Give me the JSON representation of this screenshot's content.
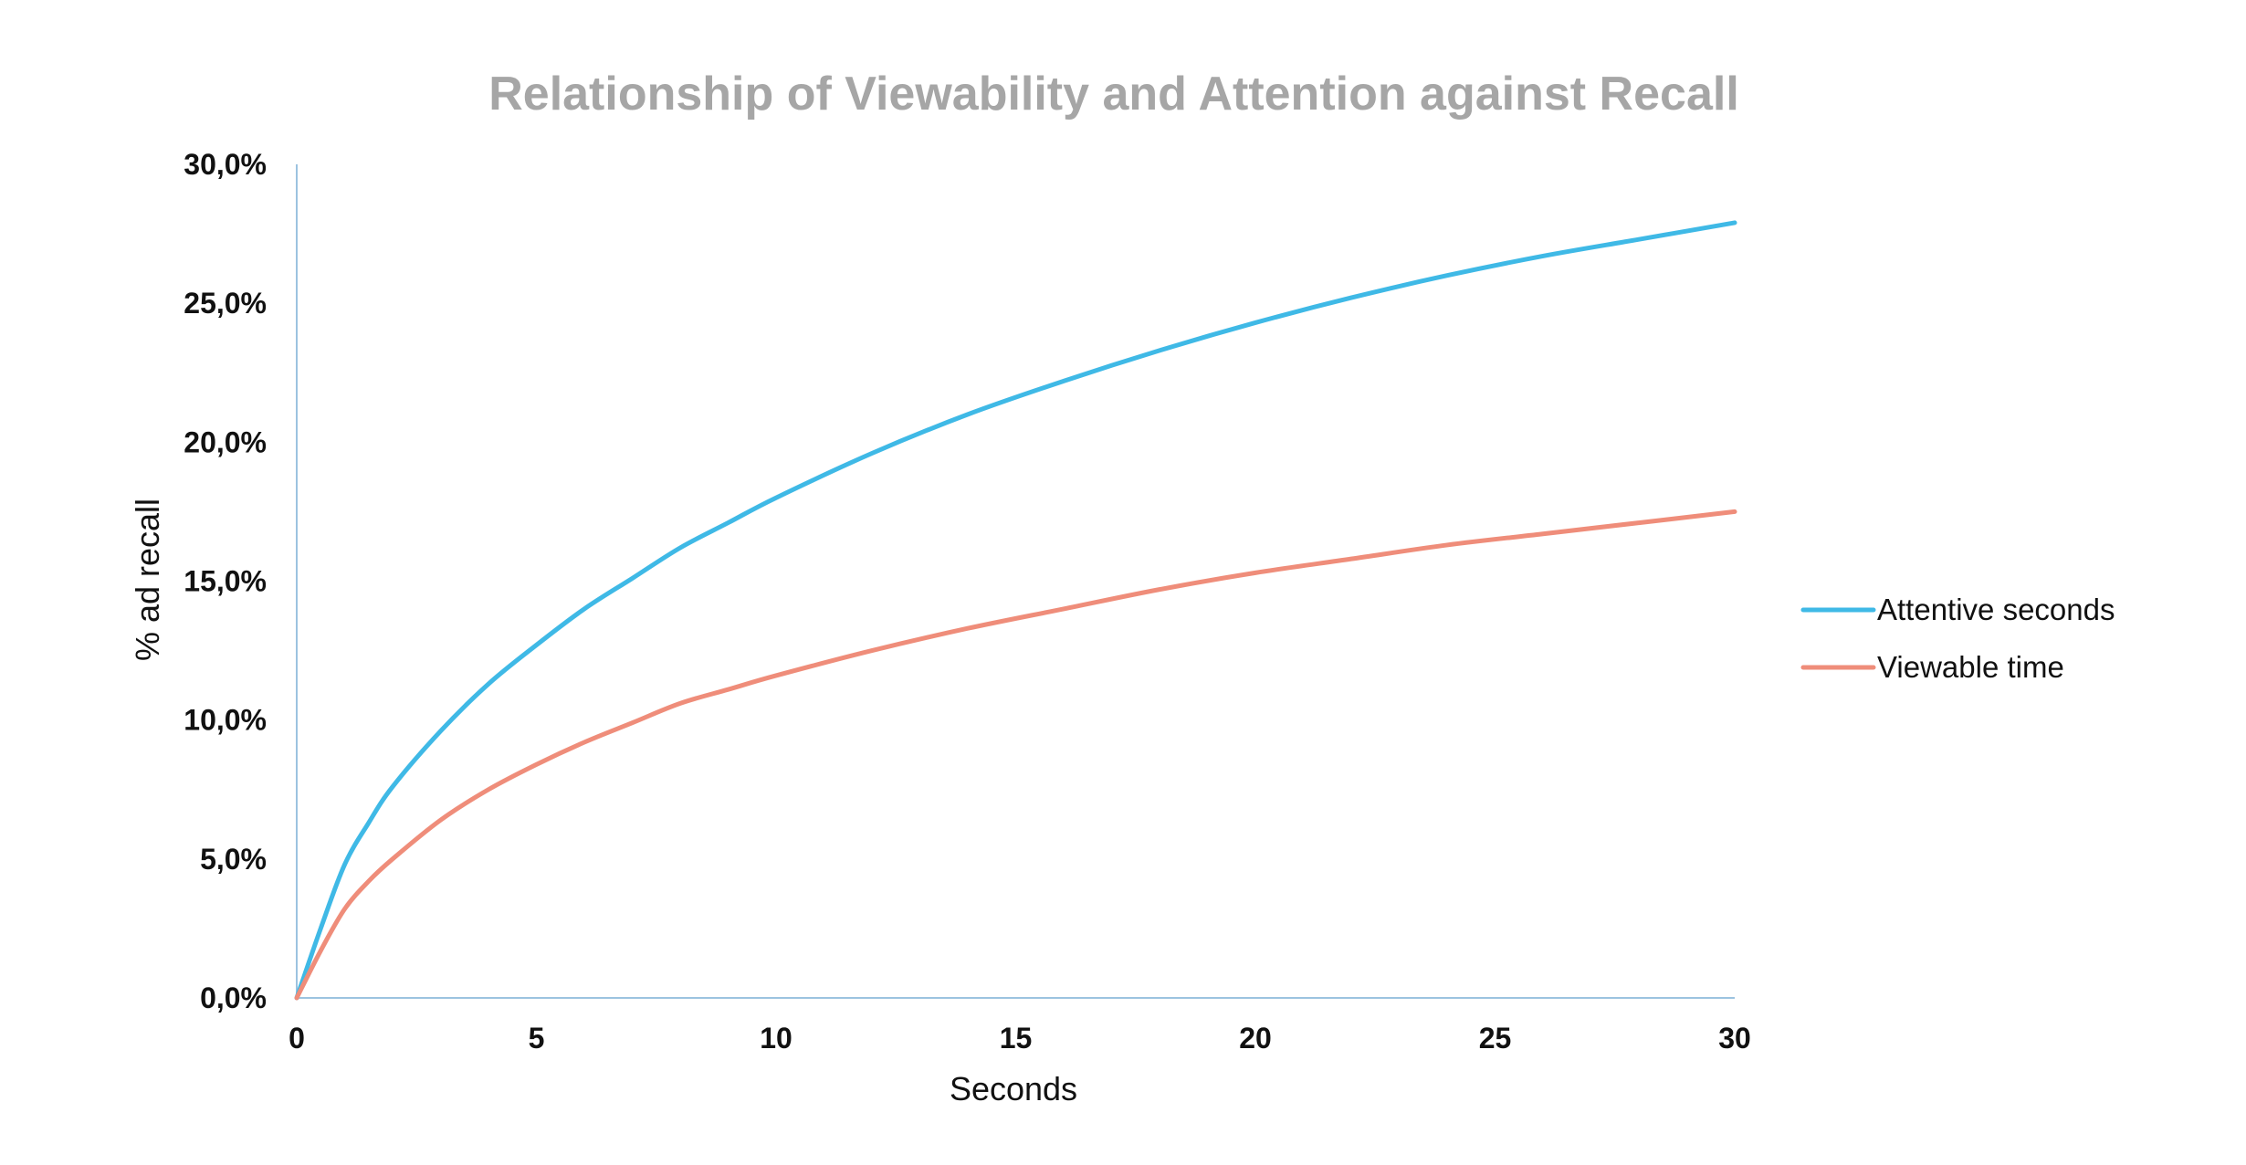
{
  "chart_data": {
    "type": "line",
    "title": "Relationship of Viewability and Attention against Recall",
    "xlabel": "Seconds",
    "ylabel": "% ad recall",
    "xlim": [
      0,
      30
    ],
    "ylim": [
      0,
      30
    ],
    "x_ticks": [
      {
        "value": 0,
        "label": "0"
      },
      {
        "value": 5,
        "label": "5"
      },
      {
        "value": 10,
        "label": "10"
      },
      {
        "value": 15,
        "label": "15"
      },
      {
        "value": 20,
        "label": "20"
      },
      {
        "value": 25,
        "label": "25"
      },
      {
        "value": 30,
        "label": "30"
      }
    ],
    "y_ticks": [
      {
        "value": 0,
        "label": "0,0%"
      },
      {
        "value": 5,
        "label": "5,0%"
      },
      {
        "value": 10,
        "label": "10,0%"
      },
      {
        "value": 15,
        "label": "15,0%"
      },
      {
        "value": 20,
        "label": "20,0%"
      },
      {
        "value": 25,
        "label": "25,0%"
      },
      {
        "value": 30,
        "label": "30,0%"
      }
    ],
    "grid": false,
    "legend_position": "right",
    "series": [
      {
        "name": "Attentive seconds",
        "color": "#3fb9e6",
        "x": [
          0,
          0.5,
          1,
          1.5,
          2,
          3,
          4,
          5,
          6,
          7,
          8,
          9,
          10,
          12,
          14,
          16,
          18,
          20,
          22,
          24,
          26,
          28,
          30
        ],
        "y": [
          0,
          2.5,
          4.8,
          6.3,
          7.6,
          9.6,
          11.3,
          12.7,
          14.0,
          15.1,
          16.2,
          17.1,
          18.0,
          19.6,
          21.0,
          22.2,
          23.3,
          24.3,
          25.2,
          26.0,
          26.7,
          27.3,
          27.9
        ]
      },
      {
        "name": "Viewable time",
        "color": "#ef8d7a",
        "x": [
          0,
          0.5,
          1,
          1.5,
          2,
          3,
          4,
          5,
          6,
          7,
          8,
          9,
          10,
          12,
          14,
          16,
          18,
          20,
          22,
          24,
          26,
          28,
          30
        ],
        "y": [
          0,
          1.7,
          3.2,
          4.2,
          5.0,
          6.4,
          7.5,
          8.4,
          9.2,
          9.9,
          10.6,
          11.1,
          11.6,
          12.5,
          13.3,
          14.0,
          14.7,
          15.3,
          15.8,
          16.3,
          16.7,
          17.1,
          17.5
        ]
      }
    ]
  }
}
